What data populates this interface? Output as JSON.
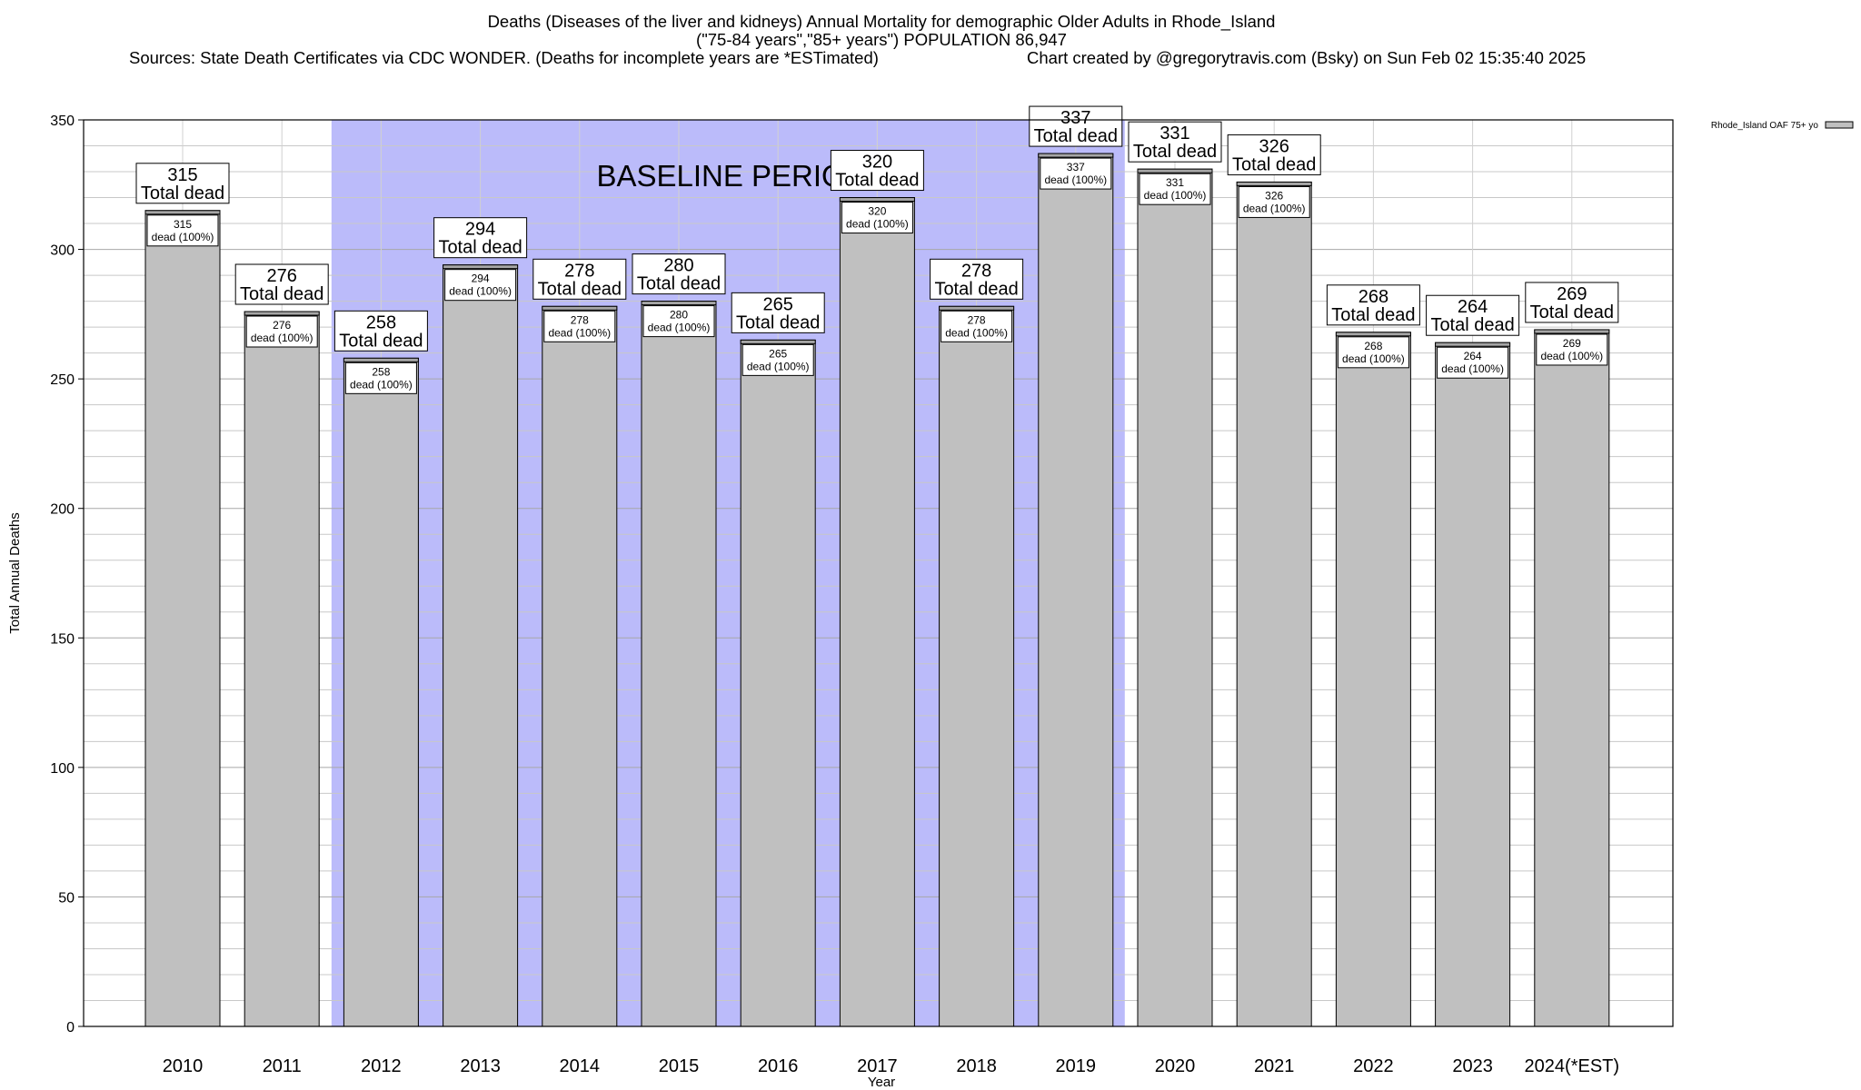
{
  "titles": {
    "line1": "Deaths (Diseases of the liver and kidneys) Annual Mortality for demographic Older Adults in Rhode_Island",
    "line2": "(\"75-84 years\",\"85+ years\") POPULATION 86,947",
    "sources": "Sources: State Death Certificates via CDC WONDER. (Deaths for incomplete years are *ESTimated)",
    "credit": "Chart created by @gregorytravis.com (Bsky) on Sun Feb 02 15:35:40 2025"
  },
  "chart_data": {
    "type": "bar",
    "title": "Deaths (Diseases of the liver and kidneys) Annual Mortality for demographic Older Adults in Rhode_Island",
    "xlabel": "Year",
    "ylabel": "Total Annual Deaths",
    "ylim": [
      0,
      350
    ],
    "yticks": [
      0,
      50,
      100,
      150,
      200,
      250,
      300,
      350
    ],
    "grid": true,
    "legend_position": "top-right",
    "categories": [
      "2010",
      "2011",
      "2012",
      "2013",
      "2014",
      "2015",
      "2016",
      "2017",
      "2018",
      "2019",
      "2020",
      "2021",
      "2022",
      "2023",
      "2024(*EST)"
    ],
    "series": [
      {
        "name": "Rhode_Island OAF 75+ yo",
        "values": [
          315,
          276,
          258,
          294,
          278,
          280,
          265,
          320,
          278,
          337,
          331,
          326,
          268,
          264,
          269
        ]
      }
    ],
    "total_label": "Total dead",
    "bar_label_suffix": "dead (100%)",
    "baseline": {
      "label": "BASELINE PERIOD",
      "from": "2012",
      "to": "2019",
      "color": "#bbbbfa"
    },
    "colors": {
      "bar": "#c0c0c0",
      "bar_top": "#a6a6a6",
      "grid": "#c8c8c8"
    }
  }
}
